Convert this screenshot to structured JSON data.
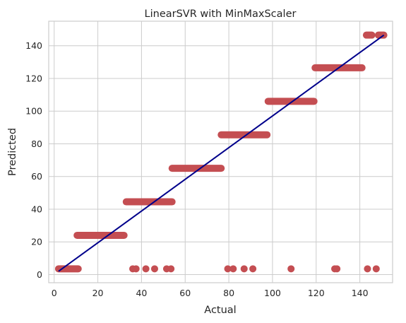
{
  "chart_data": {
    "type": "scatter",
    "title": "LinearSVR with MinMaxScaler",
    "xlabel": "Actual",
    "ylabel": "Predicted",
    "xlim": [
      -2.5,
      155
    ],
    "ylim": [
      -5,
      155
    ],
    "xticks": [
      0,
      20,
      40,
      60,
      80,
      100,
      120,
      140
    ],
    "yticks": [
      0,
      20,
      40,
      60,
      80,
      100,
      120,
      140
    ],
    "grid": true,
    "colors": {
      "points": "#c44e52",
      "line": "#00008b",
      "grid": "#cccccc",
      "spine": "#cccccc"
    },
    "scatter_bands": [
      {
        "x_start": 2,
        "x_end": 11,
        "y": 3.5
      },
      {
        "x_start": 10.5,
        "x_end": 32,
        "y": 24
      },
      {
        "x_start": 33,
        "x_end": 54,
        "y": 44.5
      },
      {
        "x_start": 54,
        "x_end": 76.5,
        "y": 65
      },
      {
        "x_start": 76.5,
        "x_end": 97.5,
        "y": 85.5
      },
      {
        "x_start": 98,
        "x_end": 119,
        "y": 106
      },
      {
        "x_start": 119.5,
        "x_end": 141,
        "y": 126.5
      },
      {
        "x_start": 143,
        "x_end": 145.5,
        "y": 146.5
      },
      {
        "x_start": 148.5,
        "x_end": 151,
        "y": 146.5
      }
    ],
    "scatter_points": [
      [
        36,
        3.5
      ],
      [
        37.5,
        3.5
      ],
      [
        42,
        3.5
      ],
      [
        46,
        3.5
      ],
      [
        51.5,
        3.5
      ],
      [
        53.5,
        3.5
      ],
      [
        79.5,
        3.5
      ],
      [
        82,
        3.5
      ],
      [
        87,
        3.5
      ],
      [
        91,
        3.5
      ],
      [
        108.5,
        3.5
      ],
      [
        128.5,
        3.5
      ],
      [
        129.5,
        3.5
      ],
      [
        143.5,
        3.5
      ],
      [
        147.5,
        3.5
      ]
    ],
    "trend_line": [
      [
        2,
        2
      ],
      [
        151,
        146.5
      ]
    ]
  }
}
